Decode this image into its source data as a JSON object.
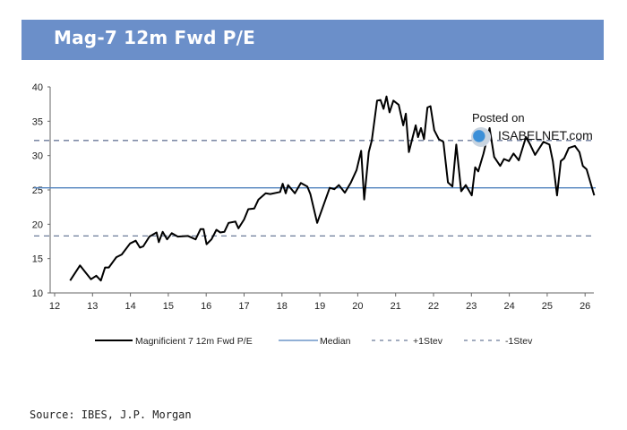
{
  "title": "Mag-7 12m Fwd P/E",
  "source": "Source: IBES, J.P. Morgan",
  "watermark": {
    "line1": "Posted on",
    "line2": "ISABELNET.com"
  },
  "colors": {
    "banner": "#6b8fc9",
    "series": "#000000",
    "median": "#4f81bd",
    "stdev": "#6b7a99"
  },
  "chart_data": {
    "type": "line",
    "title": "Mag-7 12m Fwd P/E",
    "xlabel": "",
    "ylabel": "",
    "xlim": [
      12,
      26.3
    ],
    "ylim": [
      10,
      40
    ],
    "xticks": [
      "12",
      "13",
      "14",
      "15",
      "16",
      "17",
      "18",
      "19",
      "20",
      "21",
      "22",
      "23",
      "24",
      "25",
      "26"
    ],
    "yticks": [
      "10",
      "15",
      "20",
      "25",
      "30",
      "35",
      "40"
    ],
    "grid": false,
    "legend_position": "bottom",
    "legend": [
      "Magnificient 7 12m Fwd P/E",
      "Median",
      "+1Stev",
      "-1Stev"
    ],
    "reference_lines": {
      "median": 25.3,
      "plus_1_stdev": 32.2,
      "minus_1_stdev": 18.3
    },
    "series": [
      {
        "name": "Magnificient 7 12m Fwd P/E",
        "x": [
          12.41,
          12.67,
          12.8,
          12.96,
          13.1,
          13.22,
          13.33,
          13.43,
          13.63,
          13.77,
          13.99,
          14.14,
          14.25,
          14.34,
          14.5,
          14.69,
          14.75,
          14.85,
          14.97,
          15.09,
          15.25,
          15.52,
          15.72,
          15.85,
          15.93,
          16.01,
          16.14,
          16.27,
          16.37,
          16.48,
          16.59,
          16.69,
          16.77,
          16.85,
          17.0,
          17.11,
          17.27,
          17.38,
          17.57,
          17.69,
          17.95,
          18.02,
          18.1,
          18.16,
          18.34,
          18.5,
          18.67,
          18.75,
          18.93,
          19.26,
          19.38,
          19.5,
          19.66,
          19.82,
          19.97,
          20.09,
          20.17,
          20.29,
          20.37,
          20.51,
          20.6,
          20.68,
          20.76,
          20.84,
          20.94,
          21.08,
          21.2,
          21.27,
          21.35,
          21.53,
          21.59,
          21.67,
          21.75,
          21.84,
          21.92,
          22.02,
          22.14,
          22.26,
          22.38,
          22.5,
          22.6,
          22.73,
          22.85,
          23.01,
          23.1,
          23.18,
          23.32,
          23.48,
          23.6,
          23.76,
          23.86,
          23.99,
          24.11,
          24.25,
          24.44,
          24.55,
          24.68,
          24.9,
          25.06,
          25.15,
          25.26,
          25.36,
          25.45,
          25.57,
          25.73,
          25.85,
          25.94,
          26.04,
          26.24
        ],
        "values": [
          11.8,
          14.0,
          13.1,
          12.0,
          12.5,
          11.8,
          13.7,
          13.7,
          15.2,
          15.6,
          17.2,
          17.6,
          16.6,
          16.8,
          18.2,
          18.8,
          17.4,
          18.9,
          17.8,
          18.7,
          18.2,
          18.3,
          17.8,
          19.3,
          19.3,
          17.1,
          17.8,
          19.2,
          18.8,
          18.9,
          20.2,
          20.3,
          20.4,
          19.4,
          20.7,
          22.2,
          22.3,
          23.6,
          24.5,
          24.4,
          24.7,
          25.9,
          24.5,
          25.7,
          24.5,
          26.0,
          25.5,
          24.4,
          20.2,
          25.3,
          25.1,
          25.7,
          24.6,
          26.1,
          27.9,
          30.7,
          23.6,
          30.5,
          32.2,
          38.0,
          38.1,
          36.8,
          38.6,
          36.3,
          38.0,
          37.4,
          34.4,
          36.1,
          30.5,
          34.4,
          32.7,
          34.0,
          32.4,
          37.0,
          37.2,
          33.7,
          32.4,
          32.0,
          26.1,
          25.5,
          31.6,
          24.8,
          25.7,
          24.2,
          28.3,
          27.7,
          30.3,
          34.0,
          29.8,
          28.5,
          29.5,
          29.2,
          30.3,
          29.3,
          32.7,
          31.6,
          30.1,
          32.0,
          31.6,
          29.2,
          24.2,
          29.2,
          29.6,
          31.1,
          31.4,
          30.5,
          28.5,
          28.0,
          24.2
        ]
      }
    ]
  }
}
